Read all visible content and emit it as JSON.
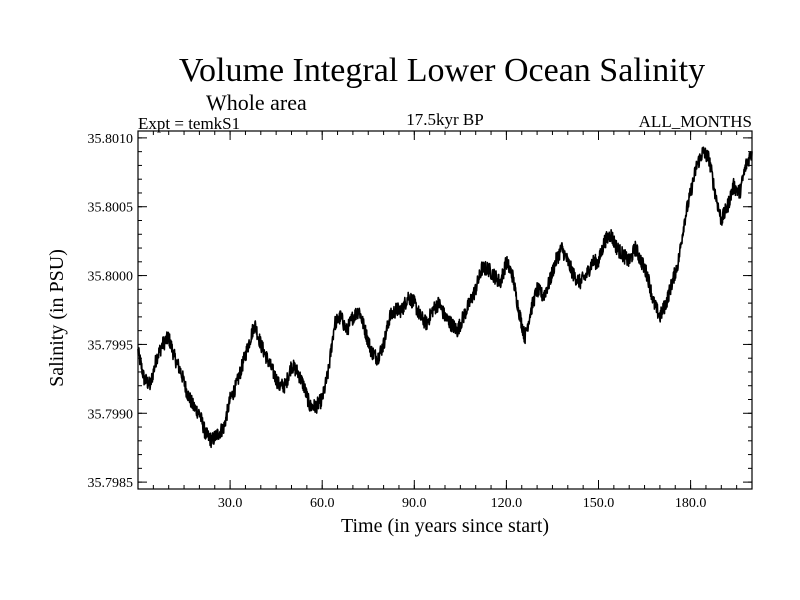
{
  "header": {
    "title": "Volume Integral Lower Ocean Salinity",
    "subtitle": "Whole area",
    "expt": "Expt = temkS1",
    "period": "17.5kyr BP",
    "months": "ALL_MONTHS"
  },
  "chart_data": {
    "type": "line",
    "title": "Volume Integral Lower Ocean Salinity",
    "subtitle": "Whole area",
    "xlabel": "Time (in years since start)",
    "ylabel": "Salinity (in PSU)",
    "xlim": [
      0,
      200
    ],
    "ylim": [
      35.79845,
      35.80105
    ],
    "xticks": [
      30,
      60,
      90,
      120,
      150,
      180
    ],
    "xtick_labels": [
      "30.0",
      "60.0",
      "90.0",
      "120.0",
      "150.0",
      "180.0"
    ],
    "yticks": [
      35.7985,
      35.799,
      35.7995,
      35.8,
      35.8005,
      35.801
    ],
    "ytick_labels": [
      "35.7985",
      "35.7990",
      "35.7995",
      "35.8000",
      "35.8005",
      "35.8010"
    ],
    "grid": false,
    "series": [
      {
        "name": "temkS1",
        "x": [
          0,
          2,
          4,
          6,
          8,
          10,
          12,
          14,
          16,
          18,
          20,
          22,
          24,
          26,
          28,
          30,
          32,
          34,
          36,
          38,
          40,
          42,
          44,
          46,
          48,
          50,
          52,
          54,
          56,
          58,
          60,
          62,
          64,
          66,
          68,
          70,
          72,
          74,
          76,
          78,
          80,
          82,
          84,
          86,
          88,
          90,
          92,
          94,
          96,
          98,
          100,
          102,
          104,
          106,
          108,
          110,
          112,
          114,
          116,
          118,
          120,
          122,
          124,
          126,
          128,
          130,
          132,
          134,
          136,
          138,
          140,
          142,
          144,
          146,
          148,
          150,
          152,
          154,
          156,
          158,
          160,
          162,
          164,
          166,
          168,
          170,
          172,
          174,
          176,
          178,
          180,
          182,
          184,
          186,
          188,
          190,
          192,
          194,
          196,
          198,
          200
        ],
        "values": [
          35.79945,
          35.79925,
          35.7992,
          35.7994,
          35.7995,
          35.79955,
          35.7994,
          35.7993,
          35.79915,
          35.79905,
          35.799,
          35.79885,
          35.7988,
          35.79885,
          35.7989,
          35.7991,
          35.7992,
          35.79935,
          35.7995,
          35.79965,
          35.7995,
          35.7994,
          35.7993,
          35.7992,
          35.7992,
          35.79935,
          35.7993,
          35.7992,
          35.79905,
          35.79905,
          35.7991,
          35.7993,
          35.79965,
          35.7997,
          35.7996,
          35.7997,
          35.79975,
          35.7996,
          35.79945,
          35.7994,
          35.7995,
          35.7997,
          35.79975,
          35.79975,
          35.79985,
          35.7998,
          35.7997,
          35.79965,
          35.79975,
          35.7998,
          35.7997,
          35.79965,
          35.7996,
          35.7997,
          35.7998,
          35.7999,
          35.80005,
          35.80005,
          35.8,
          35.79995,
          35.8001,
          35.8,
          35.79975,
          35.79955,
          35.79975,
          35.7999,
          35.79985,
          35.79995,
          35.8001,
          35.8002,
          35.8001,
          35.8,
          35.79995,
          35.8,
          35.8001,
          35.8001,
          35.80025,
          35.8003,
          35.8002,
          35.80015,
          35.8001,
          35.8002,
          35.8001,
          35.8,
          35.7998,
          35.7997,
          35.7998,
          35.79995,
          35.8001,
          35.8004,
          35.8006,
          35.8008,
          35.8009,
          35.80085,
          35.8006,
          35.8004,
          35.8005,
          35.80065,
          35.8006,
          35.8008,
          35.8009
        ]
      }
    ]
  }
}
